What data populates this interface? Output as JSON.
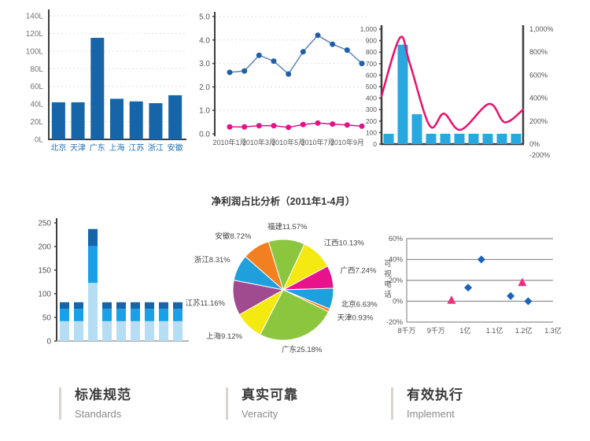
{
  "chart_data": [
    {
      "id": "bar-regions",
      "type": "bar",
      "categories": [
        "北京",
        "天津",
        "广东",
        "上海",
        "江苏",
        "浙江",
        "安徽"
      ],
      "values": [
        42,
        42,
        115,
        46,
        43,
        41,
        50
      ],
      "title": "",
      "xlabel": "",
      "ylabel": "",
      "ylim": [
        0,
        140
      ],
      "ytick_step": 20,
      "ytick_suffix": "L",
      "bar_color": "#1565a8",
      "xlabel_color": "#2470b3",
      "grid": "dashed horizontal"
    },
    {
      "id": "line-monthly",
      "type": "line",
      "x_labels": [
        "2010年1月",
        "2010年3月",
        "2010年5月",
        "2010年7月",
        "2010年9月"
      ],
      "series": [
        {
          "name": "upper-blue-series",
          "color": "#5b87b7",
          "marker_color": "#1f5fa8",
          "values": [
            2.62,
            2.68,
            3.35,
            3.1,
            2.55,
            3.5,
            4.2,
            3.82,
            3.57,
            3.0
          ]
        },
        {
          "name": "lower-pink-series",
          "color": "#e4128a",
          "marker_color": "#e4128a",
          "values": [
            0.3,
            0.3,
            0.35,
            0.35,
            0.28,
            0.4,
            0.46,
            0.42,
            0.38,
            0.33
          ]
        }
      ],
      "ylim": [
        0,
        5
      ],
      "ytick_step": 1,
      "grid": "dashed horizontal"
    },
    {
      "id": "combo-growth",
      "type": "bar+line",
      "bar_values": [
        90,
        865,
        260,
        90,
        90,
        90,
        90,
        90,
        90,
        90
      ],
      "bar_color": "#29a8e0",
      "line_color": "#ec0f69",
      "line_points": [
        [
          0,
          420
        ],
        [
          0.13,
          925
        ],
        [
          0.2,
          700
        ],
        [
          0.34,
          160
        ],
        [
          0.44,
          265
        ],
        [
          0.56,
          125
        ],
        [
          0.76,
          350
        ],
        [
          0.87,
          190
        ],
        [
          1,
          300
        ]
      ],
      "left_axis": {
        "min": 0,
        "max": 1000,
        "step": 100,
        "top_label": "1,000"
      },
      "right_axis_labels": [
        "1,000%",
        "800%",
        "600%",
        "400%",
        "200%",
        "0%"
      ],
      "right_axis_below_label": "-200%"
    },
    {
      "id": "stacked-bar",
      "type": "stacked-bar",
      "bars": 9,
      "series": [
        {
          "name": "bottom-light",
          "color": "#b5def5",
          "values": [
            42,
            42,
            123,
            42,
            42,
            42,
            42,
            42,
            42
          ]
        },
        {
          "name": "middle-medium",
          "color": "#18a0e8",
          "values": [
            26,
            26,
            78,
            26,
            26,
            26,
            26,
            26,
            26
          ]
        },
        {
          "name": "top-dark",
          "color": "#1565a8",
          "values": [
            14,
            14,
            36,
            14,
            14,
            14,
            14,
            14,
            14
          ]
        }
      ],
      "ylim": [
        0,
        250
      ],
      "ytick_step": 50
    },
    {
      "id": "pie-profit",
      "type": "pie",
      "title": "净利润占比分析（2011年1-4月）",
      "start_angle_deg": -17,
      "slices": [
        {
          "label": "福建",
          "value": 11.57,
          "color": "#8cc63e"
        },
        {
          "label": "江西",
          "value": 10.13,
          "color": "#f5e912"
        },
        {
          "label": "广西",
          "value": 7.24,
          "color": "#e8128c"
        },
        {
          "label": "北京",
          "value": 6.63,
          "color": "#209fdd"
        },
        {
          "label": "天津",
          "value": 0.93,
          "color": "#f28020"
        },
        {
          "label": "广东",
          "value": 25.18,
          "color": "#8cc63e"
        },
        {
          "label": "上海",
          "value": 9.12,
          "color": "#f5e912"
        },
        {
          "label": "江苏",
          "value": 11.16,
          "color": "#a04a90"
        },
        {
          "label": "浙江",
          "value": 8.31,
          "color": "#209fdd"
        },
        {
          "label": "安徽",
          "value": 8.72,
          "color": "#f28020"
        }
      ]
    },
    {
      "id": "scatter-videophone",
      "type": "scatter",
      "ylabel": "可视电话",
      "x_labels": [
        "8千万",
        "9千万",
        "1亿",
        "1.1亿",
        "1.2亿",
        "1.3亿"
      ],
      "xlim": [
        0.8,
        1.3
      ],
      "ylim": [
        -20,
        60
      ],
      "ytick_step": 20,
      "ytick_suffix": "%",
      "series": [
        {
          "name": "diamond-series",
          "marker": "diamond",
          "color": "#1b62b8",
          "points": [
            [
              1.01,
              13
            ],
            [
              1.055,
              40
            ],
            [
              1.155,
              5
            ],
            [
              1.215,
              0
            ]
          ]
        },
        {
          "name": "triangle-series",
          "marker": "triangle",
          "color": "#ee2f7e",
          "points": [
            [
              0.953,
              1
            ],
            [
              1.195,
              18
            ]
          ]
        }
      ]
    }
  ],
  "features": [
    {
      "title": "标准规范",
      "subtitle": "Standards"
    },
    {
      "title": "真实可靠",
      "subtitle": "Veracity"
    },
    {
      "title": "有效执行",
      "subtitle": "Implement"
    }
  ]
}
